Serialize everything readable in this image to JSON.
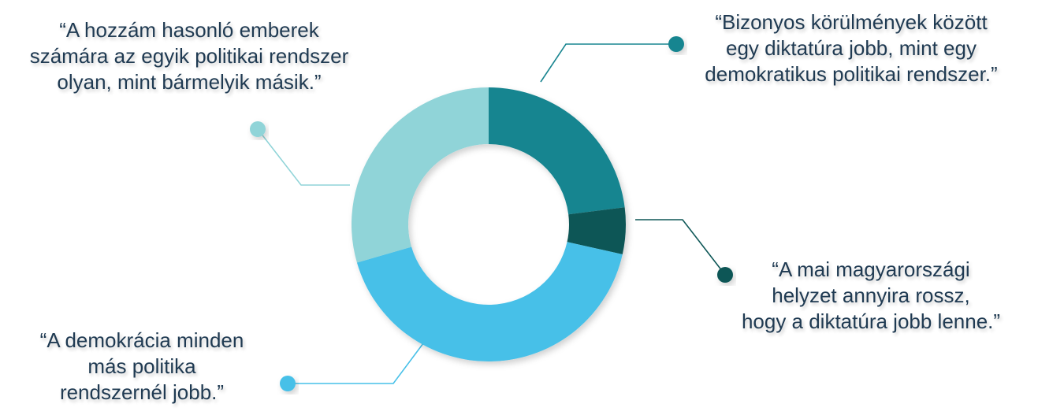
{
  "chart_data": {
    "type": "pie",
    "donut": true,
    "title": "",
    "slices": [
      {
        "label": "“Bizonyos körülmények között egy diktatúra jobb, mint egy demokratikus politikai rendszer.”",
        "lines": [
          "“Bizonyos körülmények között",
          "egy diktatúra jobb, mint egy",
          "demokratikus politikai rendszer.”"
        ],
        "value": 23,
        "color": "#198590"
      },
      {
        "label": "“A mai magyarországi helyzet annyira rossz, hogy a diktatúra jobb lenne.”",
        "lines": [
          "“A mai magyarországi",
          "helyzet annyira rossz,",
          "hogy a diktatúra jobb lenne.”"
        ],
        "value": 5.5,
        "color": "#0e5757"
      },
      {
        "label": "“A demokrácia minden más politika rendszernél jobb.”",
        "lines": [
          "“A demokrácia minden",
          "más politika",
          "rendszernél jobb.”"
        ],
        "value": 42,
        "color": "#47c0e8"
      },
      {
        "label": "“A hozzám hasonló emberek számára az egyik politikai rendszer olyan, mint bármelyik másik.”",
        "lines": [
          "“A hozzám hasonló emberek",
          "számára az egyik politikai rendszer",
          "olyan, mint bármelyik másik.”"
        ],
        "value": 29.5,
        "color": "#90d4d8"
      }
    ]
  }
}
